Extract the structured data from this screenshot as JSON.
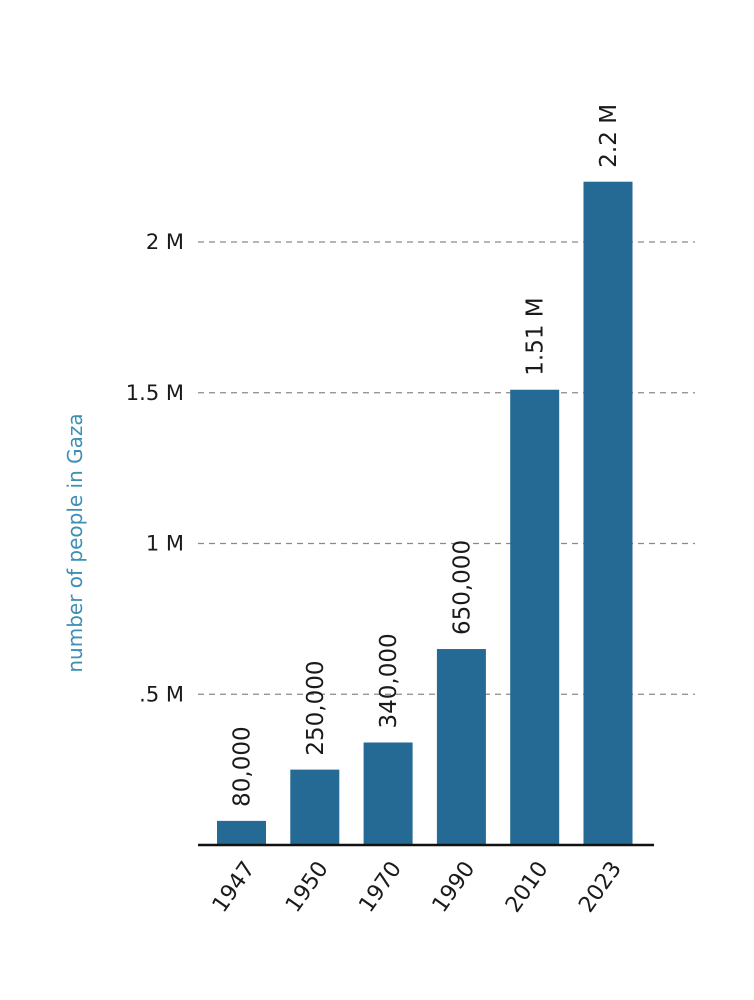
{
  "chart_data": {
    "type": "bar",
    "title": "",
    "xlabel": "",
    "ylabel": "number of people in Gaza",
    "categories": [
      "1947",
      "1950",
      "1970",
      "1990",
      "2010",
      "2023"
    ],
    "values": [
      80000,
      250000,
      340000,
      650000,
      1510000,
      2200000
    ],
    "data_labels": [
      "80,000",
      "250,000",
      "340,000",
      "650,000",
      "1.51 M",
      "2.2 M"
    ],
    "yticks": [
      {
        "value": 500000,
        "label": ".5 M"
      },
      {
        "value": 1000000,
        "label": "1 M"
      },
      {
        "value": 1500000,
        "label": "1.5 M"
      },
      {
        "value": 2000000,
        "label": "2 M"
      }
    ],
    "ylim": [
      0,
      2300000
    ],
    "grid": true,
    "colors": {
      "bar": "#256a94",
      "ylabel": "#3d8fb5"
    }
  }
}
